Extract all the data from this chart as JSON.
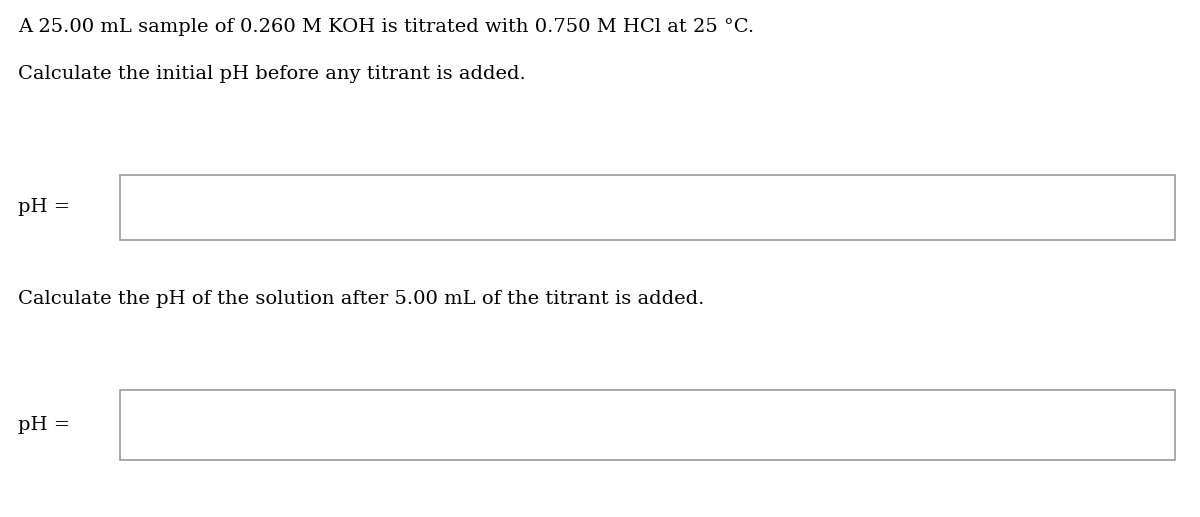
{
  "background_color": "#ffffff",
  "line1": "A 25.00 mL sample of 0.260 M KOH is titrated with 0.750 M HCl at 25 °C.",
  "line2": "Calculate the initial pH before any titrant is added.",
  "label1": "pH =",
  "line3": "Calculate the pH of the solution after 5.00 mL of the titrant is added.",
  "label2": "pH =",
  "font_size": 14,
  "box_edge_color": "#999999",
  "box_fill_color": "#ffffff",
  "text_color": "#000000",
  "font_family": "DejaVu Serif",
  "fig_width": 12.0,
  "fig_height": 5.17,
  "dpi": 100
}
